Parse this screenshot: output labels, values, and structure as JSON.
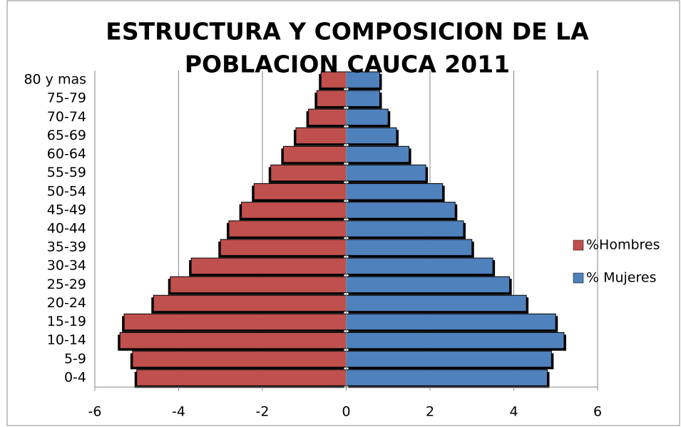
{
  "chart_data": {
    "type": "pyramid",
    "title": [
      "ESTRUCTURA Y COMPOSICION DE LA",
      "POBLACION CAUCA 2011"
    ],
    "categories": [
      "0-4",
      "5-9",
      "10-14",
      "15-19",
      "20-24",
      "25-29",
      "30-34",
      "35-39",
      "40-44",
      "45-49",
      "50-54",
      "55-59",
      "60-64",
      "65-69",
      "70-74",
      "75-79",
      "80 y mas"
    ],
    "series": [
      {
        "name": "%Hombres",
        "color": "#c0504d",
        "values": [
          -5.0,
          -5.1,
          -5.4,
          -5.3,
          -4.6,
          -4.2,
          -3.7,
          -3.0,
          -2.8,
          -2.5,
          -2.2,
          -1.8,
          -1.5,
          -1.2,
          -0.9,
          -0.7,
          -0.6
        ]
      },
      {
        "name": "% Mujeres",
        "color": "#4f81bd",
        "values": [
          4.8,
          4.9,
          5.2,
          5.0,
          4.3,
          3.9,
          3.5,
          3.0,
          2.8,
          2.6,
          2.3,
          1.9,
          1.5,
          1.2,
          1.0,
          0.8,
          0.8
        ]
      }
    ],
    "xlim": [
      -6,
      6
    ],
    "xticks": [
      -6,
      -4,
      -2,
      0,
      2,
      4,
      6
    ],
    "grid": true,
    "legend": "right"
  }
}
